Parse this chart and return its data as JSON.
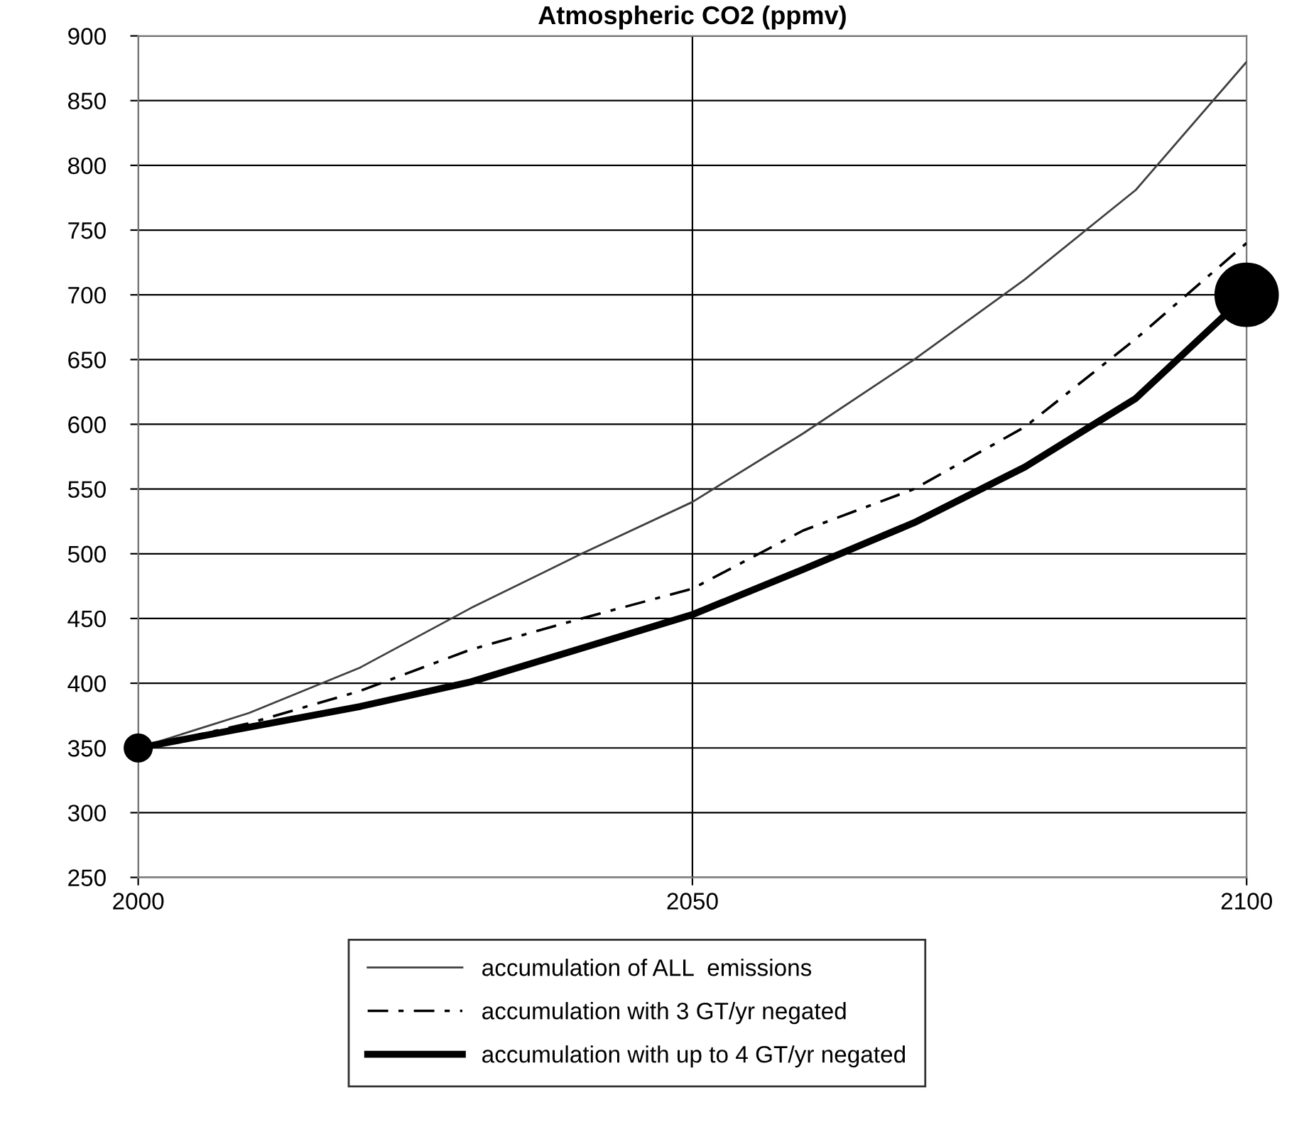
{
  "chart_data": {
    "type": "line",
    "title": "Atmospheric CO2 (ppmv)",
    "x": [
      2000,
      2010,
      2020,
      2030,
      2040,
      2050,
      2060,
      2070,
      2080,
      2090,
      2100
    ],
    "xlim": [
      2000,
      2100
    ],
    "xticks": [
      2000,
      2050,
      2100
    ],
    "ylim": [
      250,
      900
    ],
    "yticks": [
      250,
      300,
      350,
      400,
      450,
      500,
      550,
      600,
      650,
      700,
      750,
      800,
      850,
      900
    ],
    "grid": true,
    "legend": "bottom",
    "series": [
      {
        "name": "accumulation of ALL  emissions",
        "color": "#404040",
        "line_style": "solid",
        "values": [
          350,
          377,
          412,
          458,
          500,
          540,
          593,
          650,
          712,
          781,
          880
        ]
      },
      {
        "name": "accumulation with 3 GT/yr negated",
        "color": "#000000",
        "line_style": "dashdot",
        "values": [
          350,
          369,
          394,
          426,
          450,
          473,
          518,
          550,
          598,
          666,
          740
        ]
      },
      {
        "name": "accumulation with up to 4 GT/yr negated",
        "color": "#000000",
        "line_style": "solid",
        "values": [
          350,
          366,
          382,
          401,
          427,
          453,
          488,
          524,
          567,
          620,
          700
        ]
      },
      {
        "type": "bubble",
        "color": "#000000",
        "x": [
          2000,
          2100
        ],
        "values": [
          350,
          700
        ],
        "sizes": [
          0.19,
          1
        ]
      }
    ]
  }
}
